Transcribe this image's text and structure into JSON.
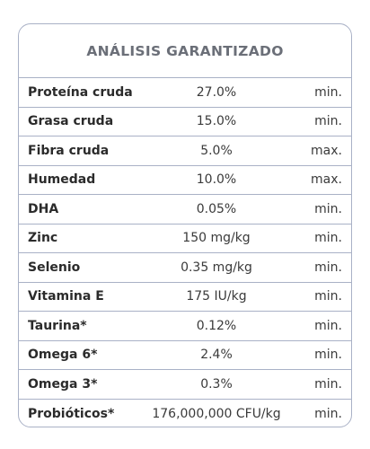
{
  "table": {
    "title": "ANÁLISIS GARANTIZADO",
    "rows": [
      {
        "name": "Proteína cruda",
        "value": "27.0%",
        "qualifier": "min."
      },
      {
        "name": "Grasa cruda",
        "value": "15.0%",
        "qualifier": "min."
      },
      {
        "name": "Fibra cruda",
        "value": "5.0%",
        "qualifier": "max."
      },
      {
        "name": "Humedad",
        "value": "10.0%",
        "qualifier": "max."
      },
      {
        "name": "DHA",
        "value": "0.05%",
        "qualifier": "min."
      },
      {
        "name": "Zinc",
        "value": "150 mg/kg",
        "qualifier": "min."
      },
      {
        "name": "Selenio",
        "value": "0.35 mg/kg",
        "qualifier": "min."
      },
      {
        "name": "Vitamina E",
        "value": "175 IU/kg",
        "qualifier": "min."
      },
      {
        "name": "Taurina*",
        "value": "0.12%",
        "qualifier": "min."
      },
      {
        "name": "Omega 6*",
        "value": "2.4%",
        "qualifier": "min."
      },
      {
        "name": "Omega 3*",
        "value": "0.3%",
        "qualifier": "min."
      },
      {
        "name": "Probióticos*",
        "value": "176,000,000 CFU/kg",
        "qualifier": "min."
      }
    ]
  }
}
